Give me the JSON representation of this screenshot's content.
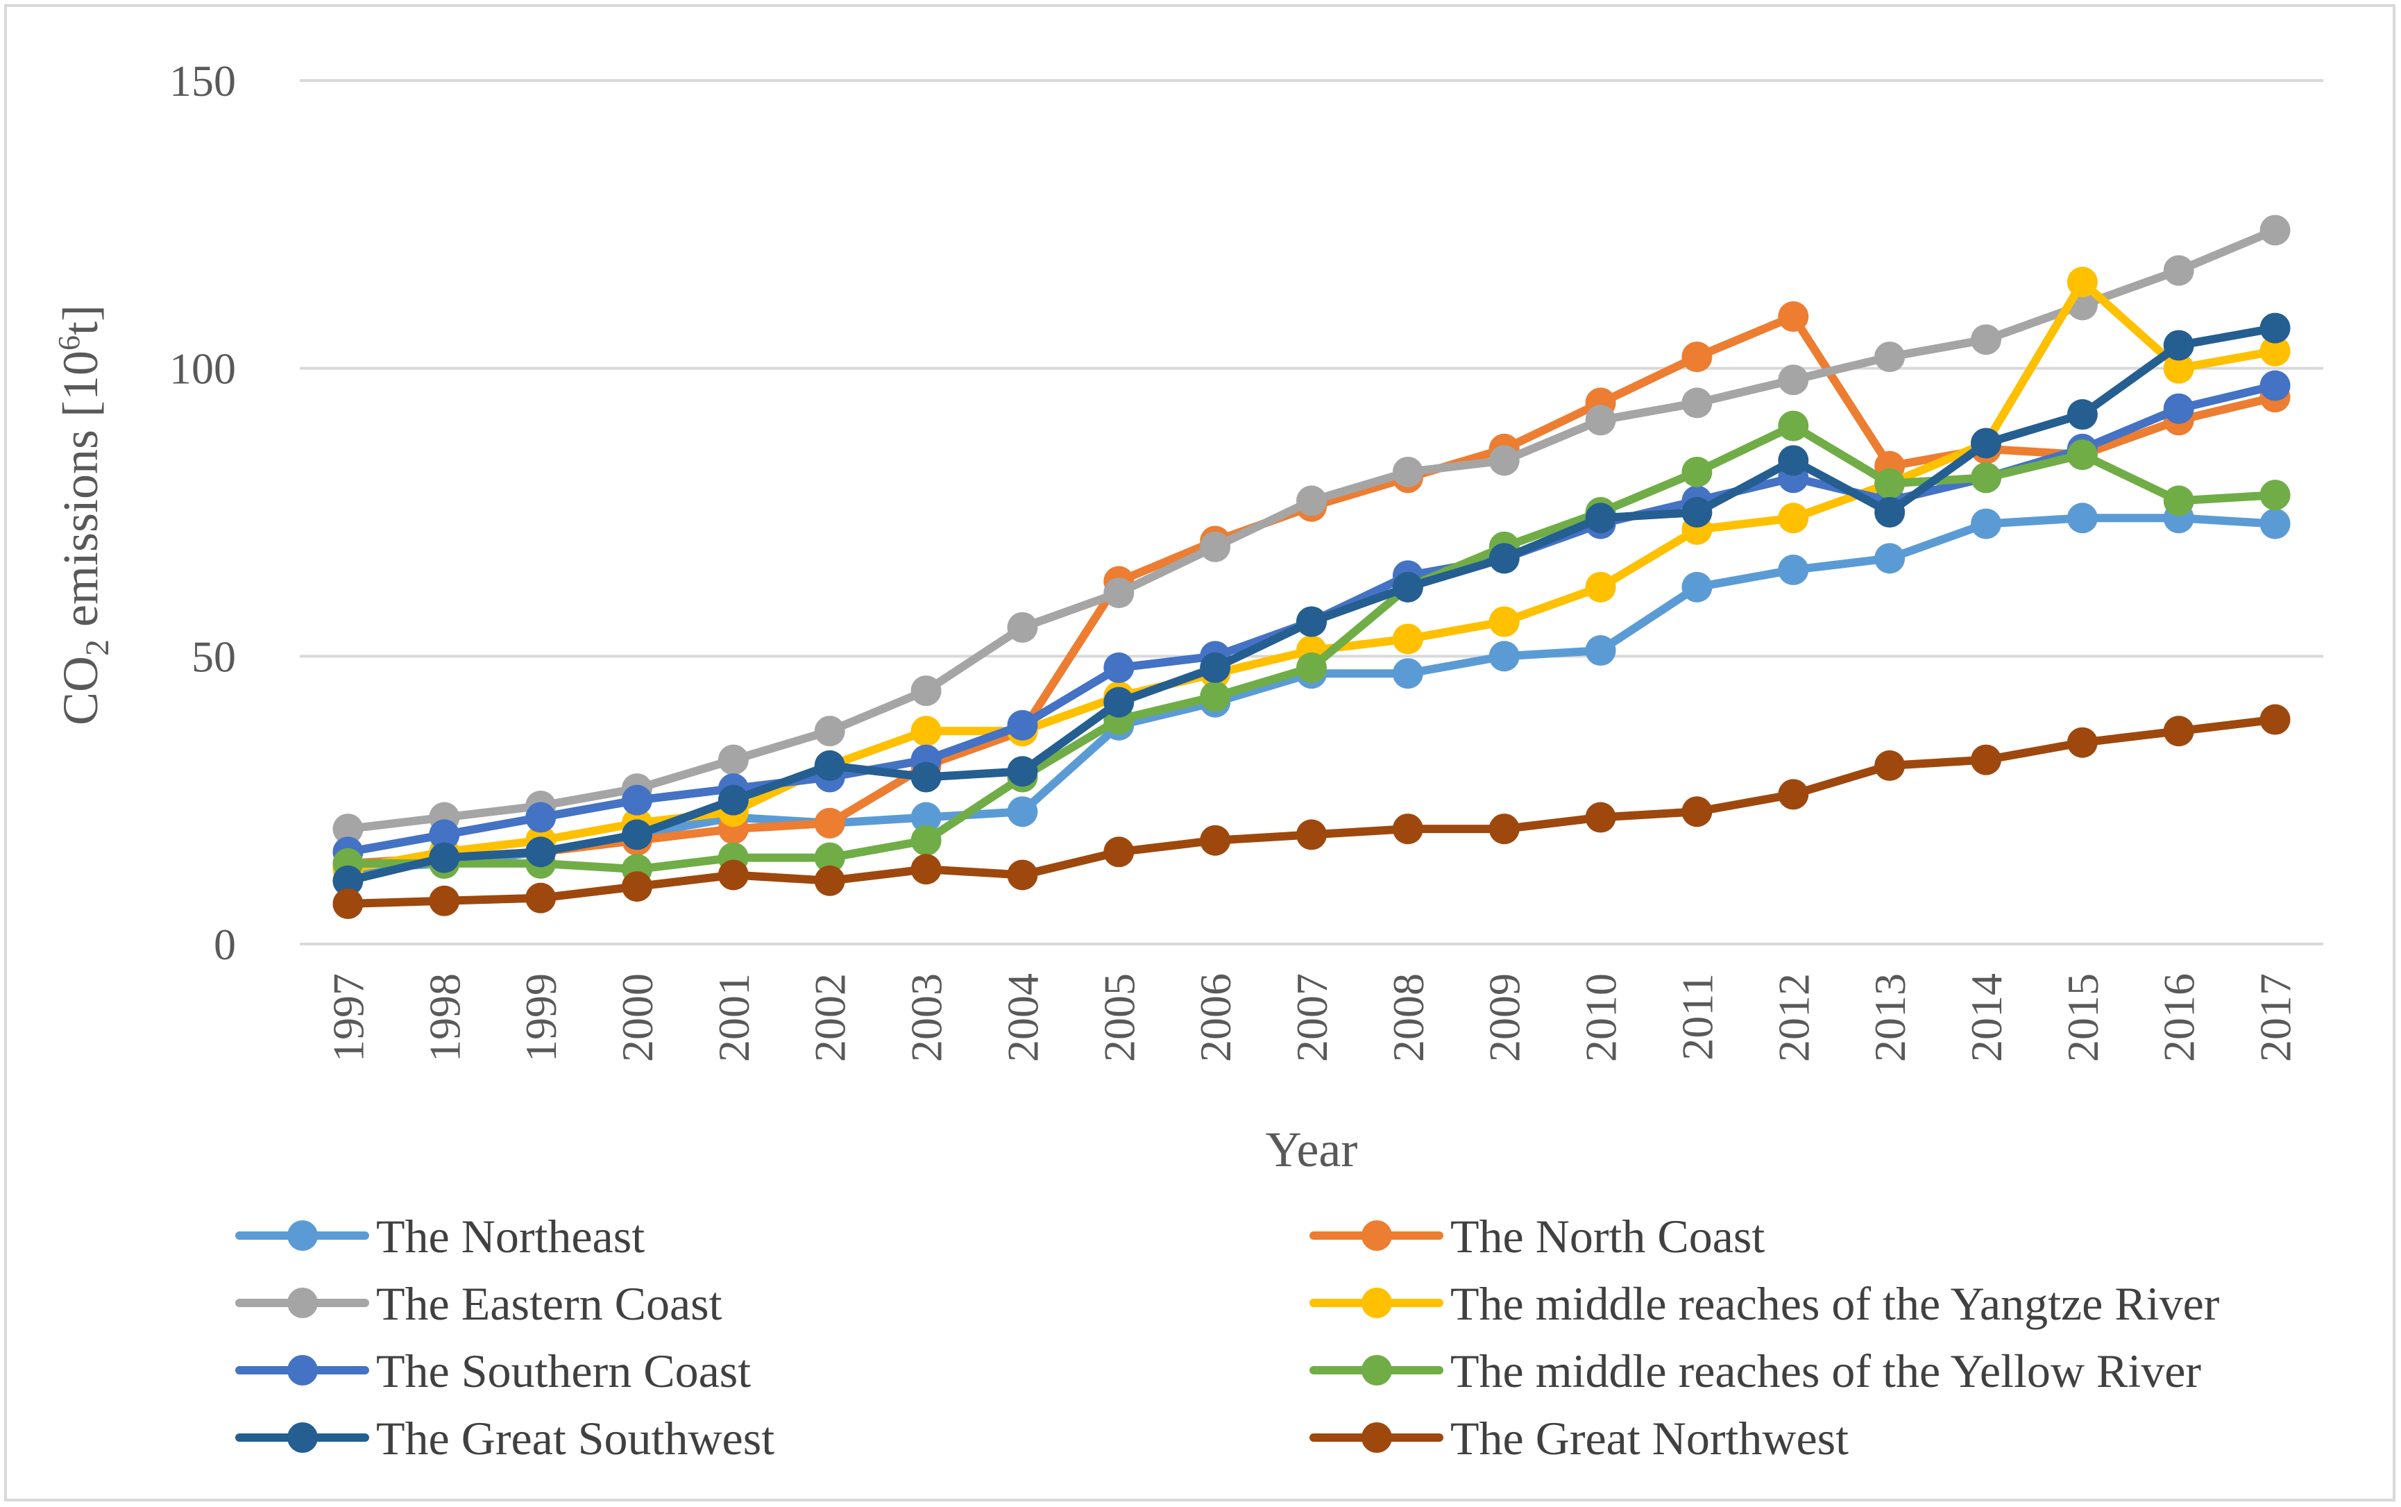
{
  "chart_data": {
    "type": "line",
    "title": "",
    "xlabel": "Year",
    "ylabel_main": "CO",
    "ylabel_sub": "2",
    "ylabel_rest": " emissions [10",
    "ylabel_sup": "6",
    "ylabel_end": "t]",
    "ylim": [
      0,
      150
    ],
    "yticks": [
      0,
      50,
      100,
      150
    ],
    "yticklabels": [
      "0",
      "50",
      "100",
      "150"
    ],
    "grid": true,
    "legend_position": "bottom",
    "categories": [
      "1997",
      "1998",
      "1999",
      "2000",
      "2001",
      "2002",
      "2003",
      "2004",
      "2005",
      "2006",
      "2007",
      "2008",
      "2009",
      "2010",
      "2011",
      "2012",
      "2013",
      "2014",
      "2015",
      "2016",
      "2017"
    ],
    "series": [
      {
        "name": "The Northeast",
        "color": "#5b9bd5",
        "values": [
          13,
          14,
          16,
          19,
          22,
          21,
          22,
          23,
          38,
          42,
          47,
          47,
          50,
          51,
          62,
          65,
          67,
          73,
          74,
          74,
          73
        ]
      },
      {
        "name": "The North Coast",
        "color": "#ed7d31",
        "values": [
          14,
          15,
          16,
          18,
          20,
          21,
          31,
          37,
          63,
          70,
          76,
          81,
          86,
          94,
          102,
          109,
          83,
          86,
          85,
          91,
          95
        ]
      },
      {
        "name": "The Eastern Coast",
        "color": "#a5a5a5",
        "values": [
          20,
          22,
          24,
          27,
          32,
          37,
          44,
          55,
          61,
          69,
          77,
          82,
          84,
          91,
          94,
          98,
          102,
          105,
          111,
          117,
          124
        ]
      },
      {
        "name": "The middle reaches of the Yangtze River",
        "color": "#ffc000",
        "values": [
          13,
          16,
          18,
          21,
          23,
          31,
          37,
          37,
          43,
          47,
          51,
          53,
          56,
          62,
          72,
          74,
          80,
          87,
          115,
          100,
          103
        ]
      },
      {
        "name": "The Southern Coast",
        "color": "#4472c4",
        "values": [
          16,
          19,
          22,
          25,
          27,
          29,
          32,
          38,
          48,
          50,
          56,
          64,
          67,
          73,
          77,
          81,
          77,
          81,
          86,
          93,
          97
        ]
      },
      {
        "name": "The middle reaches of the Yellow River",
        "color": "#70ad47",
        "values": [
          14,
          14,
          14,
          13,
          15,
          15,
          18,
          29,
          39,
          43,
          48,
          62,
          69,
          75,
          82,
          90,
          80,
          81,
          85,
          77,
          78
        ]
      },
      {
        "name": "The Great Southwest",
        "color": "#255e91",
        "values": [
          11,
          15,
          16,
          19,
          25,
          31,
          29,
          30,
          42,
          48,
          56,
          62,
          67,
          74,
          75,
          84,
          75,
          87,
          92,
          104,
          107
        ]
      },
      {
        "name": "The Great Northwest",
        "color": "#9e480e",
        "values": [
          7,
          7.5,
          8,
          10,
          12,
          11,
          13,
          12,
          16,
          18,
          19,
          20,
          20,
          22,
          23,
          26,
          31,
          32,
          35,
          37,
          39
        ]
      }
    ]
  }
}
